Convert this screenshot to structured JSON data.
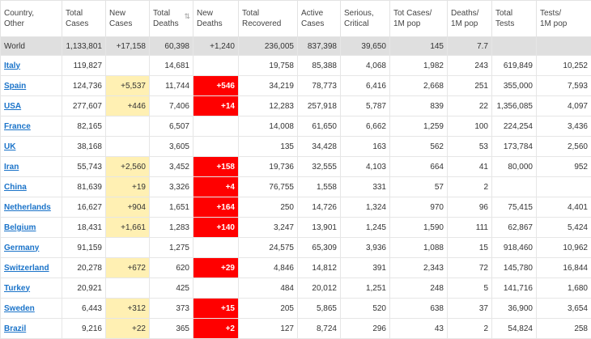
{
  "header": {
    "columns": [
      {
        "label": "Country,\nOther",
        "sort_icon": "sort-arrows-icon"
      },
      {
        "label": "Total\nCases"
      },
      {
        "label": "New\nCases"
      },
      {
        "label": "Total\nDeaths"
      },
      {
        "label": "New\nDeaths"
      },
      {
        "label": "Total\nRecovered"
      },
      {
        "label": "Active\nCases"
      },
      {
        "label": "Serious,\nCritical"
      },
      {
        "label": "Tot Cases/\n1M pop"
      },
      {
        "label": "Deaths/\n1M pop"
      },
      {
        "label": "Total\nTests"
      },
      {
        "label": "Tests/\n1M pop"
      }
    ]
  },
  "colors": {
    "new_cases_bg": "#fff0b3",
    "new_deaths_bg": "#ff0000",
    "world_row_bg": "#dfdfdf",
    "link": "#1a73c9"
  },
  "world": {
    "country": "World",
    "total_cases": "1,133,801",
    "new_cases": "+17,158",
    "total_deaths": "60,398",
    "new_deaths": "+1,240",
    "total_recovered": "236,005",
    "active_cases": "837,398",
    "serious_critical": "39,650",
    "tot_cases_1m": "145",
    "deaths_1m": "7.7",
    "total_tests": "",
    "tests_1m": ""
  },
  "rows": [
    {
      "country": "Italy",
      "total_cases": "119,827",
      "new_cases": "",
      "total_deaths": "14,681",
      "new_deaths": "",
      "total_recovered": "19,758",
      "active_cases": "85,388",
      "serious_critical": "4,068",
      "tot_cases_1m": "1,982",
      "deaths_1m": "243",
      "total_tests": "619,849",
      "tests_1m": "10,252"
    },
    {
      "country": "Spain",
      "total_cases": "124,736",
      "new_cases": "+5,537",
      "total_deaths": "11,744",
      "new_deaths": "+546",
      "total_recovered": "34,219",
      "active_cases": "78,773",
      "serious_critical": "6,416",
      "tot_cases_1m": "2,668",
      "deaths_1m": "251",
      "total_tests": "355,000",
      "tests_1m": "7,593"
    },
    {
      "country": "USA",
      "total_cases": "277,607",
      "new_cases": "+446",
      "total_deaths": "7,406",
      "new_deaths": "+14",
      "total_recovered": "12,283",
      "active_cases": "257,918",
      "serious_critical": "5,787",
      "tot_cases_1m": "839",
      "deaths_1m": "22",
      "total_tests": "1,356,085",
      "tests_1m": "4,097"
    },
    {
      "country": "France",
      "total_cases": "82,165",
      "new_cases": "",
      "total_deaths": "6,507",
      "new_deaths": "",
      "total_recovered": "14,008",
      "active_cases": "61,650",
      "serious_critical": "6,662",
      "tot_cases_1m": "1,259",
      "deaths_1m": "100",
      "total_tests": "224,254",
      "tests_1m": "3,436"
    },
    {
      "country": "UK",
      "total_cases": "38,168",
      "new_cases": "",
      "total_deaths": "3,605",
      "new_deaths": "",
      "total_recovered": "135",
      "active_cases": "34,428",
      "serious_critical": "163",
      "tot_cases_1m": "562",
      "deaths_1m": "53",
      "total_tests": "173,784",
      "tests_1m": "2,560"
    },
    {
      "country": "Iran",
      "total_cases": "55,743",
      "new_cases": "+2,560",
      "total_deaths": "3,452",
      "new_deaths": "+158",
      "total_recovered": "19,736",
      "active_cases": "32,555",
      "serious_critical": "4,103",
      "tot_cases_1m": "664",
      "deaths_1m": "41",
      "total_tests": "80,000",
      "tests_1m": "952"
    },
    {
      "country": "China",
      "total_cases": "81,639",
      "new_cases": "+19",
      "total_deaths": "3,326",
      "new_deaths": "+4",
      "total_recovered": "76,755",
      "active_cases": "1,558",
      "serious_critical": "331",
      "tot_cases_1m": "57",
      "deaths_1m": "2",
      "total_tests": "",
      "tests_1m": ""
    },
    {
      "country": "Netherlands",
      "total_cases": "16,627",
      "new_cases": "+904",
      "total_deaths": "1,651",
      "new_deaths": "+164",
      "total_recovered": "250",
      "active_cases": "14,726",
      "serious_critical": "1,324",
      "tot_cases_1m": "970",
      "deaths_1m": "96",
      "total_tests": "75,415",
      "tests_1m": "4,401"
    },
    {
      "country": "Belgium",
      "total_cases": "18,431",
      "new_cases": "+1,661",
      "total_deaths": "1,283",
      "new_deaths": "+140",
      "total_recovered": "3,247",
      "active_cases": "13,901",
      "serious_critical": "1,245",
      "tot_cases_1m": "1,590",
      "deaths_1m": "111",
      "total_tests": "62,867",
      "tests_1m": "5,424"
    },
    {
      "country": "Germany",
      "total_cases": "91,159",
      "new_cases": "",
      "total_deaths": "1,275",
      "new_deaths": "",
      "total_recovered": "24,575",
      "active_cases": "65,309",
      "serious_critical": "3,936",
      "tot_cases_1m": "1,088",
      "deaths_1m": "15",
      "total_tests": "918,460",
      "tests_1m": "10,962"
    },
    {
      "country": "Switzerland",
      "total_cases": "20,278",
      "new_cases": "+672",
      "total_deaths": "620",
      "new_deaths": "+29",
      "total_recovered": "4,846",
      "active_cases": "14,812",
      "serious_critical": "391",
      "tot_cases_1m": "2,343",
      "deaths_1m": "72",
      "total_tests": "145,780",
      "tests_1m": "16,844"
    },
    {
      "country": "Turkey",
      "total_cases": "20,921",
      "new_cases": "",
      "total_deaths": "425",
      "new_deaths": "",
      "total_recovered": "484",
      "active_cases": "20,012",
      "serious_critical": "1,251",
      "tot_cases_1m": "248",
      "deaths_1m": "5",
      "total_tests": "141,716",
      "tests_1m": "1,680"
    },
    {
      "country": "Sweden",
      "total_cases": "6,443",
      "new_cases": "+312",
      "total_deaths": "373",
      "new_deaths": "+15",
      "total_recovered": "205",
      "active_cases": "5,865",
      "serious_critical": "520",
      "tot_cases_1m": "638",
      "deaths_1m": "37",
      "total_tests": "36,900",
      "tests_1m": "3,654"
    },
    {
      "country": "Brazil",
      "total_cases": "9,216",
      "new_cases": "+22",
      "total_deaths": "365",
      "new_deaths": "+2",
      "total_recovered": "127",
      "active_cases": "8,724",
      "serious_critical": "296",
      "tot_cases_1m": "43",
      "deaths_1m": "2",
      "total_tests": "54,824",
      "tests_1m": "258"
    }
  ]
}
